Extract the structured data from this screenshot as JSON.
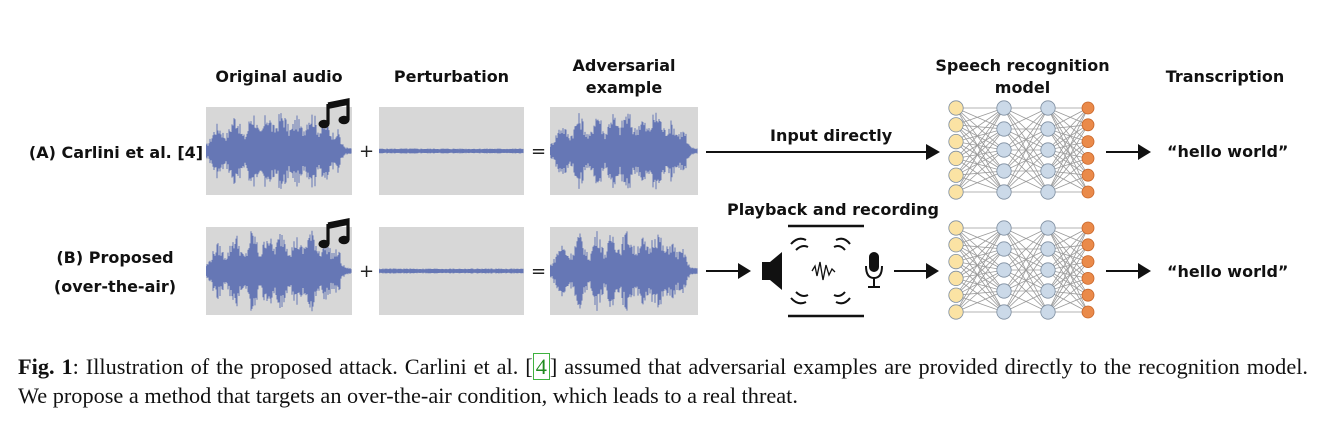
{
  "figure": {
    "headers": {
      "original_audio": "Original audio",
      "perturbation": "Perturbation",
      "adversarial_line1": "Adversarial",
      "adversarial_line2": "example",
      "model_line1": "Speech recognition",
      "model_line2": "model",
      "transcription": "Transcription"
    },
    "rows": [
      {
        "label_line1": "(A) Carlini et al. [4]",
        "label_line2": "",
        "plus": "+",
        "equals": "=",
        "path_label": "Input directly",
        "transcription": "“hello world”"
      },
      {
        "label_line1": "(B) Proposed",
        "label_line2": "(over-the-air)",
        "plus": "+",
        "equals": "=",
        "path_label": "Playback and recording",
        "transcription": "“hello world”"
      }
    ],
    "icons": [
      "music-note-icon",
      "speaker-icon",
      "sound-wave-icon",
      "microphone-icon"
    ],
    "colors": {
      "waveform": "#5a6db2",
      "panel": "#d7d7d7",
      "input_node": "#fbe3a4",
      "hidden_node": "#cbd9e8",
      "output_node": "#ea8a4a",
      "citation": "#1f8a1f"
    }
  },
  "caption": {
    "label": "Fig. 1",
    "text": ": Illustration of the proposed attack. Carlini et al. ",
    "ref": "4",
    "text_after": " assumed that adversarial examples are provided directly to the recognition model. We propose a method that targets an over-the-air condition, which leads to a real threat."
  }
}
